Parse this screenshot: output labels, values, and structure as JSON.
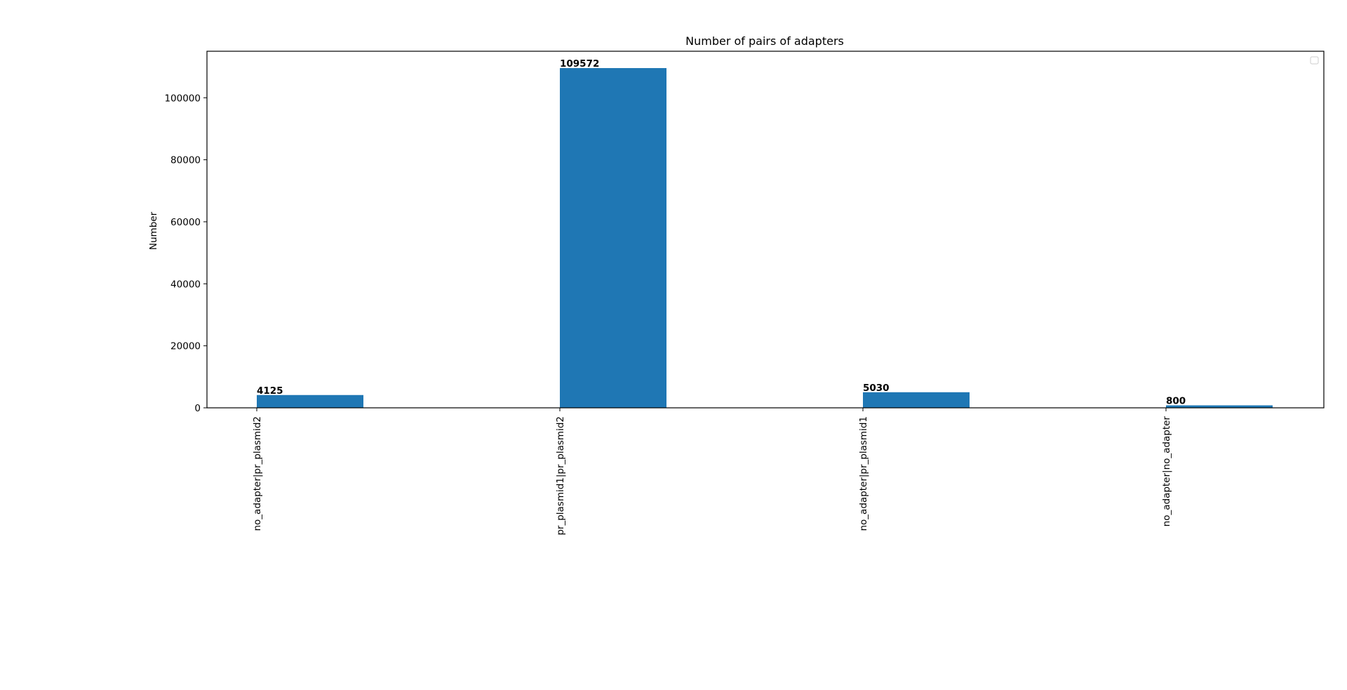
{
  "chart_data": {
    "type": "bar",
    "title": "Number of pairs of adapters",
    "xlabel": "",
    "ylabel": "Number",
    "categories": [
      "no_adapter|pr_plasmid2",
      "pr_plasmid1|pr_plasmid2",
      "no_adapter|pr_plasmid1",
      "no_adapter|no_adapter"
    ],
    "values": [
      4125,
      109572,
      5030,
      800
    ],
    "ylim": [
      0,
      115000
    ],
    "yticks": [
      0,
      20000,
      40000,
      60000,
      80000,
      100000
    ],
    "bar_color": "#1f77b4",
    "grid": false,
    "legend": "top-right (empty)"
  }
}
